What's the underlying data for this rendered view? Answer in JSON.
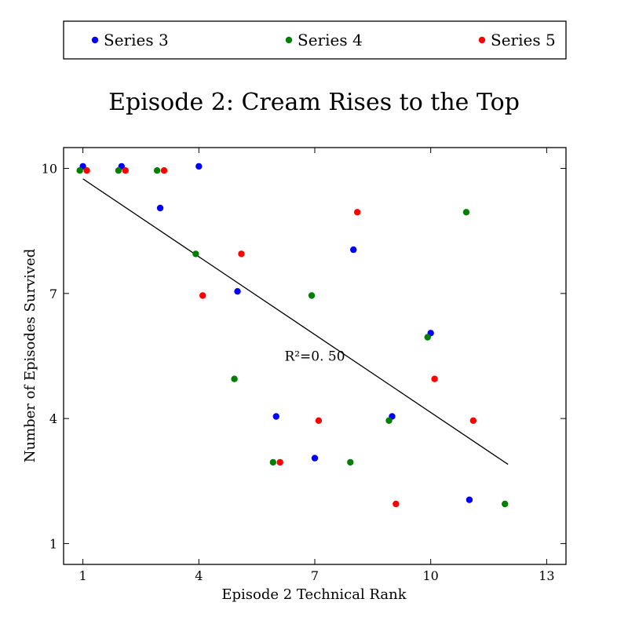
{
  "chart_data": {
    "type": "scatter",
    "title": "Episode 2: Cream Rises to the Top",
    "xlabel": "Episode 2 Technical Rank",
    "ylabel": "Number of Episodes Survived",
    "xlim": [
      0.5,
      13.5
    ],
    "ylim": [
      0.5,
      10.5
    ],
    "xticks": [
      1,
      4,
      7,
      10,
      13
    ],
    "yticks": [
      1,
      4,
      7,
      10
    ],
    "legend_position": "top, outside plot",
    "annotation": {
      "text": "R²=0. 50",
      "x": 7.0,
      "y": 5.5
    },
    "trendline": {
      "x": [
        1,
        12
      ],
      "y": [
        9.75,
        2.9
      ]
    },
    "series": [
      {
        "name": "Series 3",
        "color": "#0000ff",
        "points": [
          [
            1,
            10
          ],
          [
            2,
            10
          ],
          [
            3,
            9
          ],
          [
            4,
            10
          ],
          [
            5,
            7
          ],
          [
            6,
            4
          ],
          [
            7,
            3
          ],
          [
            8,
            8
          ],
          [
            9,
            4
          ],
          [
            10,
            6
          ],
          [
            11,
            2
          ]
        ]
      },
      {
        "name": "Series 4",
        "color": "#008000",
        "points": [
          [
            1,
            10
          ],
          [
            2,
            10
          ],
          [
            3,
            10
          ],
          [
            4,
            8
          ],
          [
            5,
            5
          ],
          [
            6,
            3
          ],
          [
            7,
            7
          ],
          [
            8,
            3
          ],
          [
            9,
            4
          ],
          [
            10,
            6
          ],
          [
            11,
            9
          ],
          [
            12,
            2
          ]
        ]
      },
      {
        "name": "Series 5",
        "color": "#ff0000",
        "points": [
          [
            1,
            10
          ],
          [
            2,
            10
          ],
          [
            3,
            10
          ],
          [
            4,
            7
          ],
          [
            5,
            8
          ],
          [
            6,
            3
          ],
          [
            7,
            4
          ],
          [
            8,
            9
          ],
          [
            9,
            2
          ],
          [
            10,
            5
          ],
          [
            11,
            4
          ]
        ]
      }
    ]
  }
}
